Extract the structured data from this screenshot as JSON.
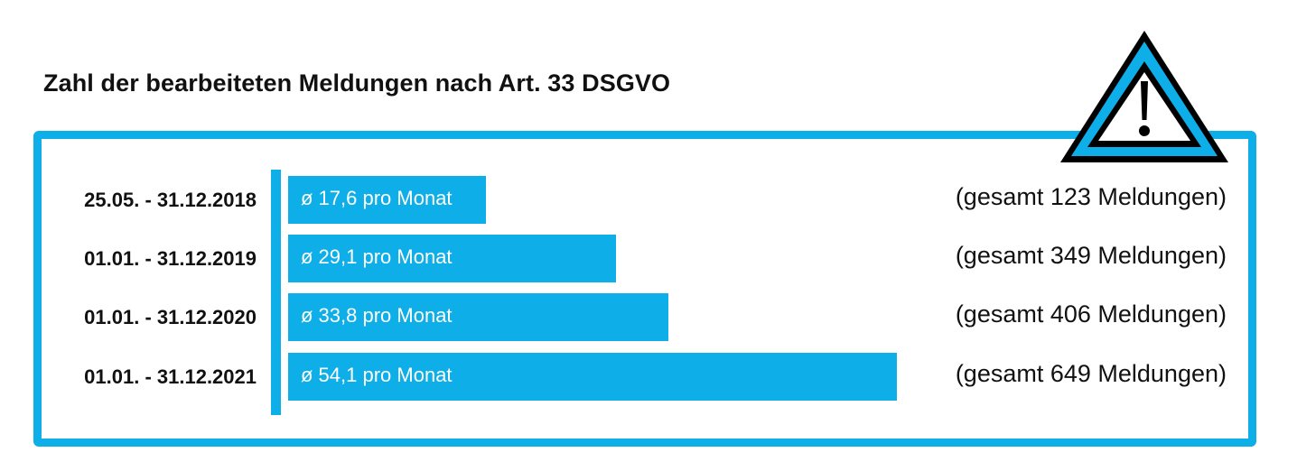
{
  "title": "Zahl der bearbeiteten Meldungen nach Art. 33 DSGVO",
  "warning_icon": "warning-triangle-icon",
  "colors": {
    "accent": "#0eaee8",
    "text": "#111111",
    "bar_text": "#ffffff"
  },
  "chart_data": {
    "type": "bar",
    "orientation": "horizontal",
    "title": "Zahl der bearbeiteten Meldungen nach Art. 33 DSGVO",
    "categories": [
      "25.05. - 31.12.2018",
      "01.01. - 31.12.2019",
      "01.01. - 31.12.2020",
      "01.01. - 31.12.2021"
    ],
    "values": [
      17.6,
      29.1,
      33.8,
      54.1
    ],
    "totals": [
      123,
      349,
      406,
      649
    ],
    "bar_labels": [
      "ø 17,6 pro Monat",
      "ø 29,1 pro Monat",
      "ø 33,8 pro Monat",
      "ø 54,1 pro Monat"
    ],
    "total_labels": [
      "(gesamt 123 Meldungen)",
      "(gesamt 349 Meldungen)",
      "(gesamt 406 Meldungen)",
      "(gesamt 649 Meldungen)"
    ],
    "xlim": [
      0,
      54.1
    ]
  }
}
